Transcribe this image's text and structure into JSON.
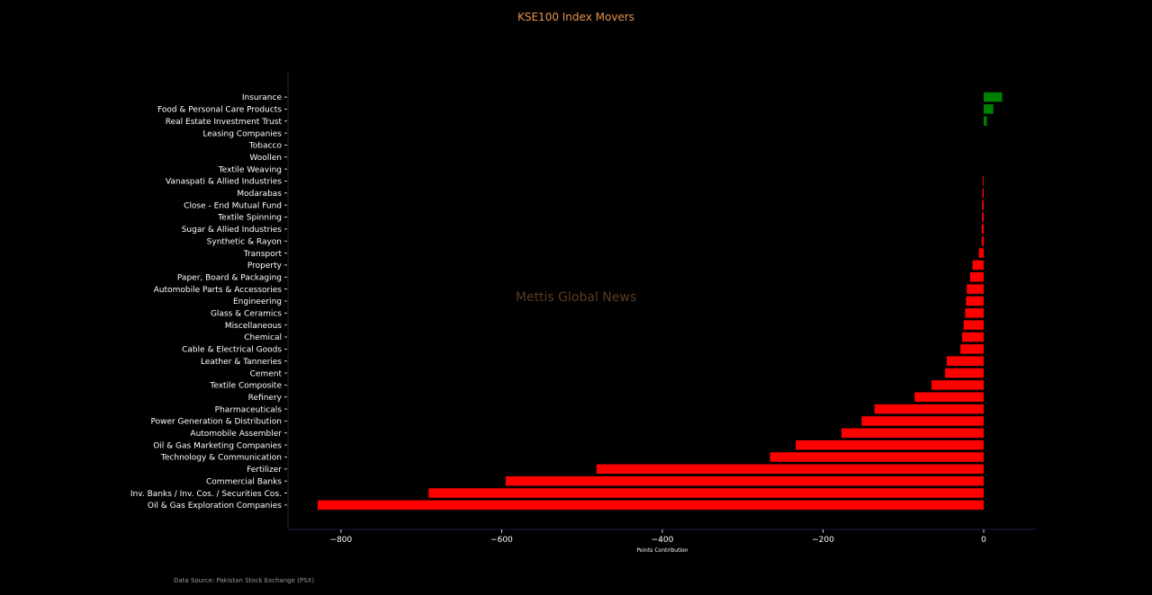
{
  "chart_data": {
    "type": "bar",
    "orientation": "horizontal",
    "title": "KSE100 Index Movers",
    "xlabel": "Points Contribution",
    "ylabel": "",
    "watermark": "Mettis Global News",
    "source": "Data Source: Pakistan Stock Exchange (PSX)",
    "xlim": [
      -866,
      65
    ],
    "xticks": [
      -800,
      -600,
      -400,
      -200,
      0
    ],
    "xtick_labels": [
      "−800",
      "−600",
      "−400",
      "−200",
      "0"
    ],
    "grid": false,
    "positive_color": "#008000",
    "negative_color": "#ff0000",
    "background_color": "#000000",
    "title_color": "#e8914a",
    "categories": [
      "Insurance",
      "Food & Personal Care Products",
      "Real Estate Investment Trust",
      "Leasing Companies",
      "Tobacco",
      "Woollen",
      "Textile Weaving",
      "Vanaspati & Allied Industries",
      "Modarabas",
      "Close - End Mutual Fund",
      "Textile Spinning",
      "Sugar & Allied Industries",
      "Synthetic & Rayon",
      "Transport",
      "Property",
      "Paper, Board & Packaging",
      "Automobile Parts & Accessories",
      "Engineering",
      "Glass & Ceramics",
      "Miscellaneous",
      "Chemical",
      "Cable & Electrical Goods",
      "Leather & Tanneries",
      "Cement",
      "Textile Composite",
      "Refinery",
      "Pharmaceuticals",
      "Power Generation & Distribution",
      "Automobile Assembler",
      "Oil & Gas Marketing Companies",
      "Technology & Communication",
      "Fertilizer",
      "Commercial Banks",
      "Inv. Banks / Inv. Cos. / Securities Cos.",
      "Oil & Gas Exploration Companies"
    ],
    "values": [
      23,
      12,
      4,
      0,
      0,
      0,
      0,
      -1,
      -1.5,
      -2,
      -2,
      -2.5,
      -2.5,
      -6,
      -14,
      -17,
      -21,
      -22,
      -23,
      -25,
      -27,
      -29,
      -46,
      -48,
      -65,
      -86,
      -136,
      -152,
      -177,
      -234,
      -266,
      -482,
      -595,
      -691,
      -829
    ]
  }
}
